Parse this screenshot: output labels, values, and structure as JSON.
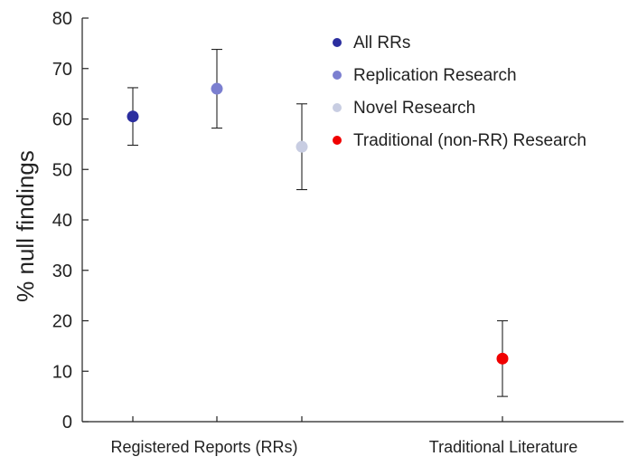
{
  "chart_data": {
    "type": "scatter",
    "ylabel": "% null findings",
    "ylim": [
      0,
      80
    ],
    "yticks": [
      0,
      10,
      20,
      30,
      40,
      50,
      60,
      70,
      80
    ],
    "groups": [
      "Registered Reports (RRs)",
      "Traditional Literature"
    ],
    "series": [
      {
        "name": "All RRs",
        "group": "Registered Reports (RRs)",
        "value": 60.5,
        "ci": [
          54.8,
          66.2
        ],
        "color": "#2b2e9f"
      },
      {
        "name": "Replication Research",
        "group": "Registered Reports (RRs)",
        "value": 66.0,
        "ci": [
          58.2,
          73.8
        ],
        "color": "#7b7fd0"
      },
      {
        "name": "Novel Research",
        "group": "Registered Reports (RRs)",
        "value": 54.5,
        "ci": [
          46.0,
          63.0
        ],
        "color": "#c8cde2"
      },
      {
        "name": "Traditional (non-RR) Research",
        "group": "Traditional Literature",
        "value": 12.5,
        "ci": [
          5.0,
          20.0
        ],
        "color": "#f00000"
      }
    ],
    "legend_position": "top-right",
    "grid": false
  }
}
